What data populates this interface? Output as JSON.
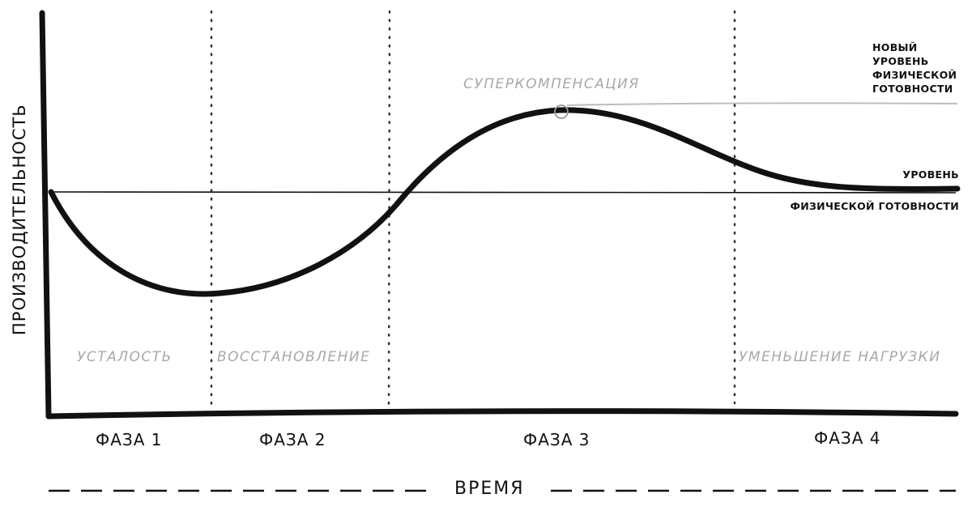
{
  "diagram": {
    "y_axis_label": "ПРОИЗВОДИТЕЛЬНОСТЬ",
    "x_axis_label": "ВРЕМЯ",
    "phases": [
      "ФАЗА 1",
      "ФАЗА 2",
      "ФАЗА 3",
      "ФАЗА 4"
    ],
    "stages": [
      "УСТАЛОСТЬ",
      "ВОССТАНОВЛЕНИЕ",
      "УМЕНЬШЕНИЕ НАГРУЗКИ"
    ],
    "peak_label": "СУПЕРКОМПЕНСАЦИЯ",
    "baseline_label": {
      "line1": "УРОВЕНЬ",
      "line2": "ФИЗИЧЕСКОЙ ГОТОВНОСТИ"
    },
    "new_level_label": {
      "line1": "НОВЫЙ",
      "line2": "УРОВЕНЬ",
      "line3": "ФИЗИЧЕСКОЙ",
      "line4": "ГОТОВНОСТИ"
    },
    "colors": {
      "ink": "#111111",
      "faint_text": "#a8a8a8",
      "new_level_line": "#bdbdbd"
    }
  }
}
